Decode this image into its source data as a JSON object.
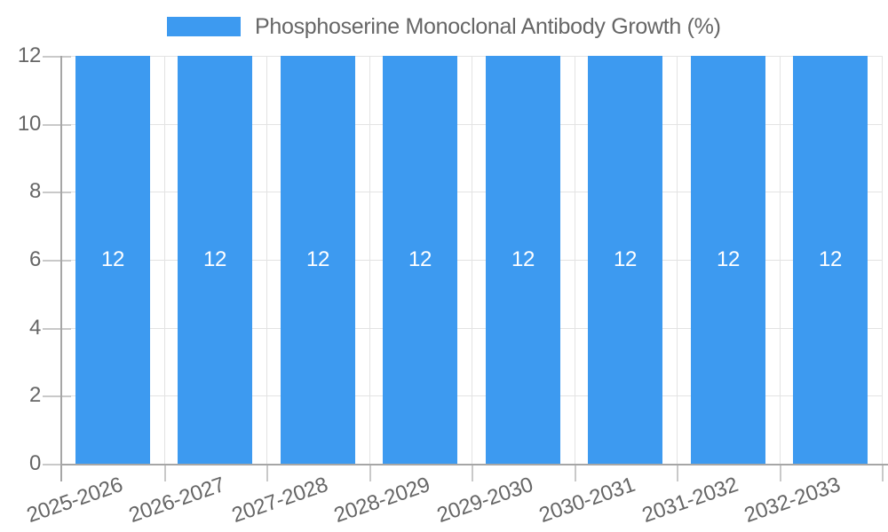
{
  "chart_data": {
    "type": "bar",
    "title": "Phosphoserine Monoclonal Antibody Growth (%)",
    "legend_position": "top",
    "categories": [
      "2025-2026",
      "2026-2027",
      "2027-2028",
      "2028-2029",
      "2029-2030",
      "2030-2031",
      "2031-2032",
      "2032-2033"
    ],
    "values": [
      12,
      12,
      12,
      12,
      12,
      12,
      12,
      12
    ],
    "bar_value_labels": [
      "12",
      "12",
      "12",
      "12",
      "12",
      "12",
      "12",
      "12"
    ],
    "xlabel": "",
    "ylabel": "",
    "ylim": [
      0,
      12
    ],
    "yticks": [
      0,
      2,
      4,
      6,
      8,
      10,
      12
    ],
    "ytick_labels": [
      "0",
      "2",
      "4",
      "6",
      "8",
      "10",
      "12"
    ],
    "grid": "on",
    "colors": {
      "bar": "#3D9AF0",
      "grid": "#E3E3E3",
      "axis": "#A6A6A6",
      "tick": "#C9C9C9",
      "text": "#666666",
      "bar_value_text": "#FFFFFF",
      "background": "#FFFFFF"
    }
  }
}
